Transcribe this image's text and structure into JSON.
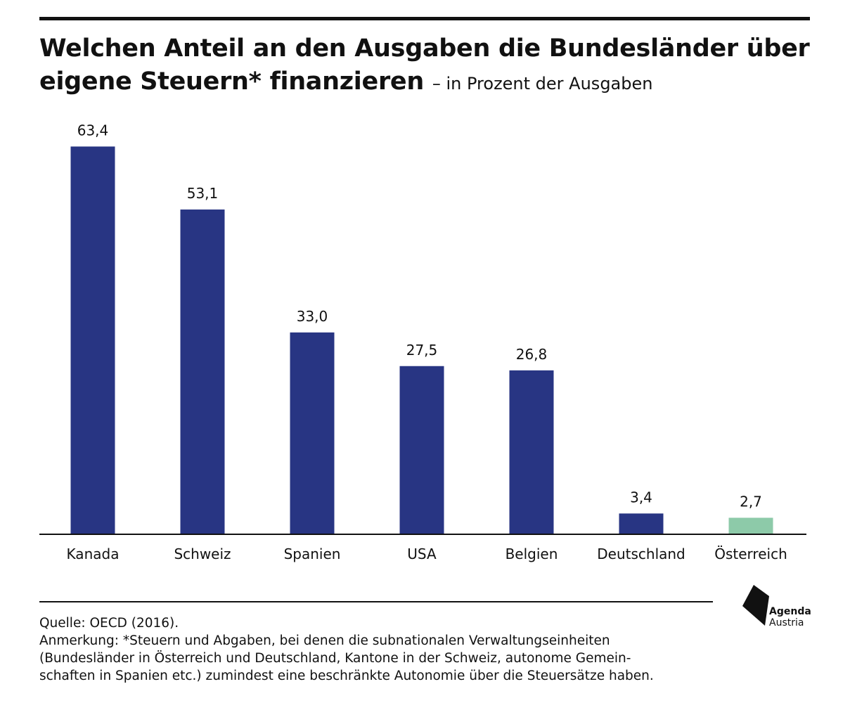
{
  "title": "Welchen Anteil an den Ausgaben die Bundesländer über eigene Steuern* finanzieren",
  "subtitle": "– in Prozent der Ausgaben",
  "chart_data": {
    "type": "bar",
    "categories": [
      "Kanada",
      "Schweiz",
      "Spanien",
      "USA",
      "Belgien",
      "Deutschland",
      "Österreich"
    ],
    "values": [
      63.4,
      53.1,
      33.0,
      27.5,
      26.8,
      3.4,
      2.7
    ],
    "value_labels": [
      "63,4",
      "53,1",
      "33,0",
      "27,5",
      "26,8",
      "3,4",
      "2,7"
    ],
    "colors": [
      "#283583",
      "#283583",
      "#283583",
      "#283583",
      "#283583",
      "#283583",
      "#8dcaa9"
    ],
    "ylim": [
      0,
      70
    ],
    "grid": false,
    "axis_color": "#111111"
  },
  "footer": {
    "source": "Quelle: OECD (2016).",
    "note_lines": [
      "Anmerkung: *Steuern und Abgaben, bei denen die subnationalen Verwaltungseinheiten",
      "(Bundesländer in Österreich und Deutschland, Kantone in der Schweiz, autonome Gemein-",
      "schaften in Spanien etc.) zumindest eine beschränkte Autonomie über die Steuersätze haben."
    ]
  },
  "logo": {
    "name": "Agenda",
    "sub": "Austria",
    "icon": "agenda-austria-logo-icon"
  }
}
